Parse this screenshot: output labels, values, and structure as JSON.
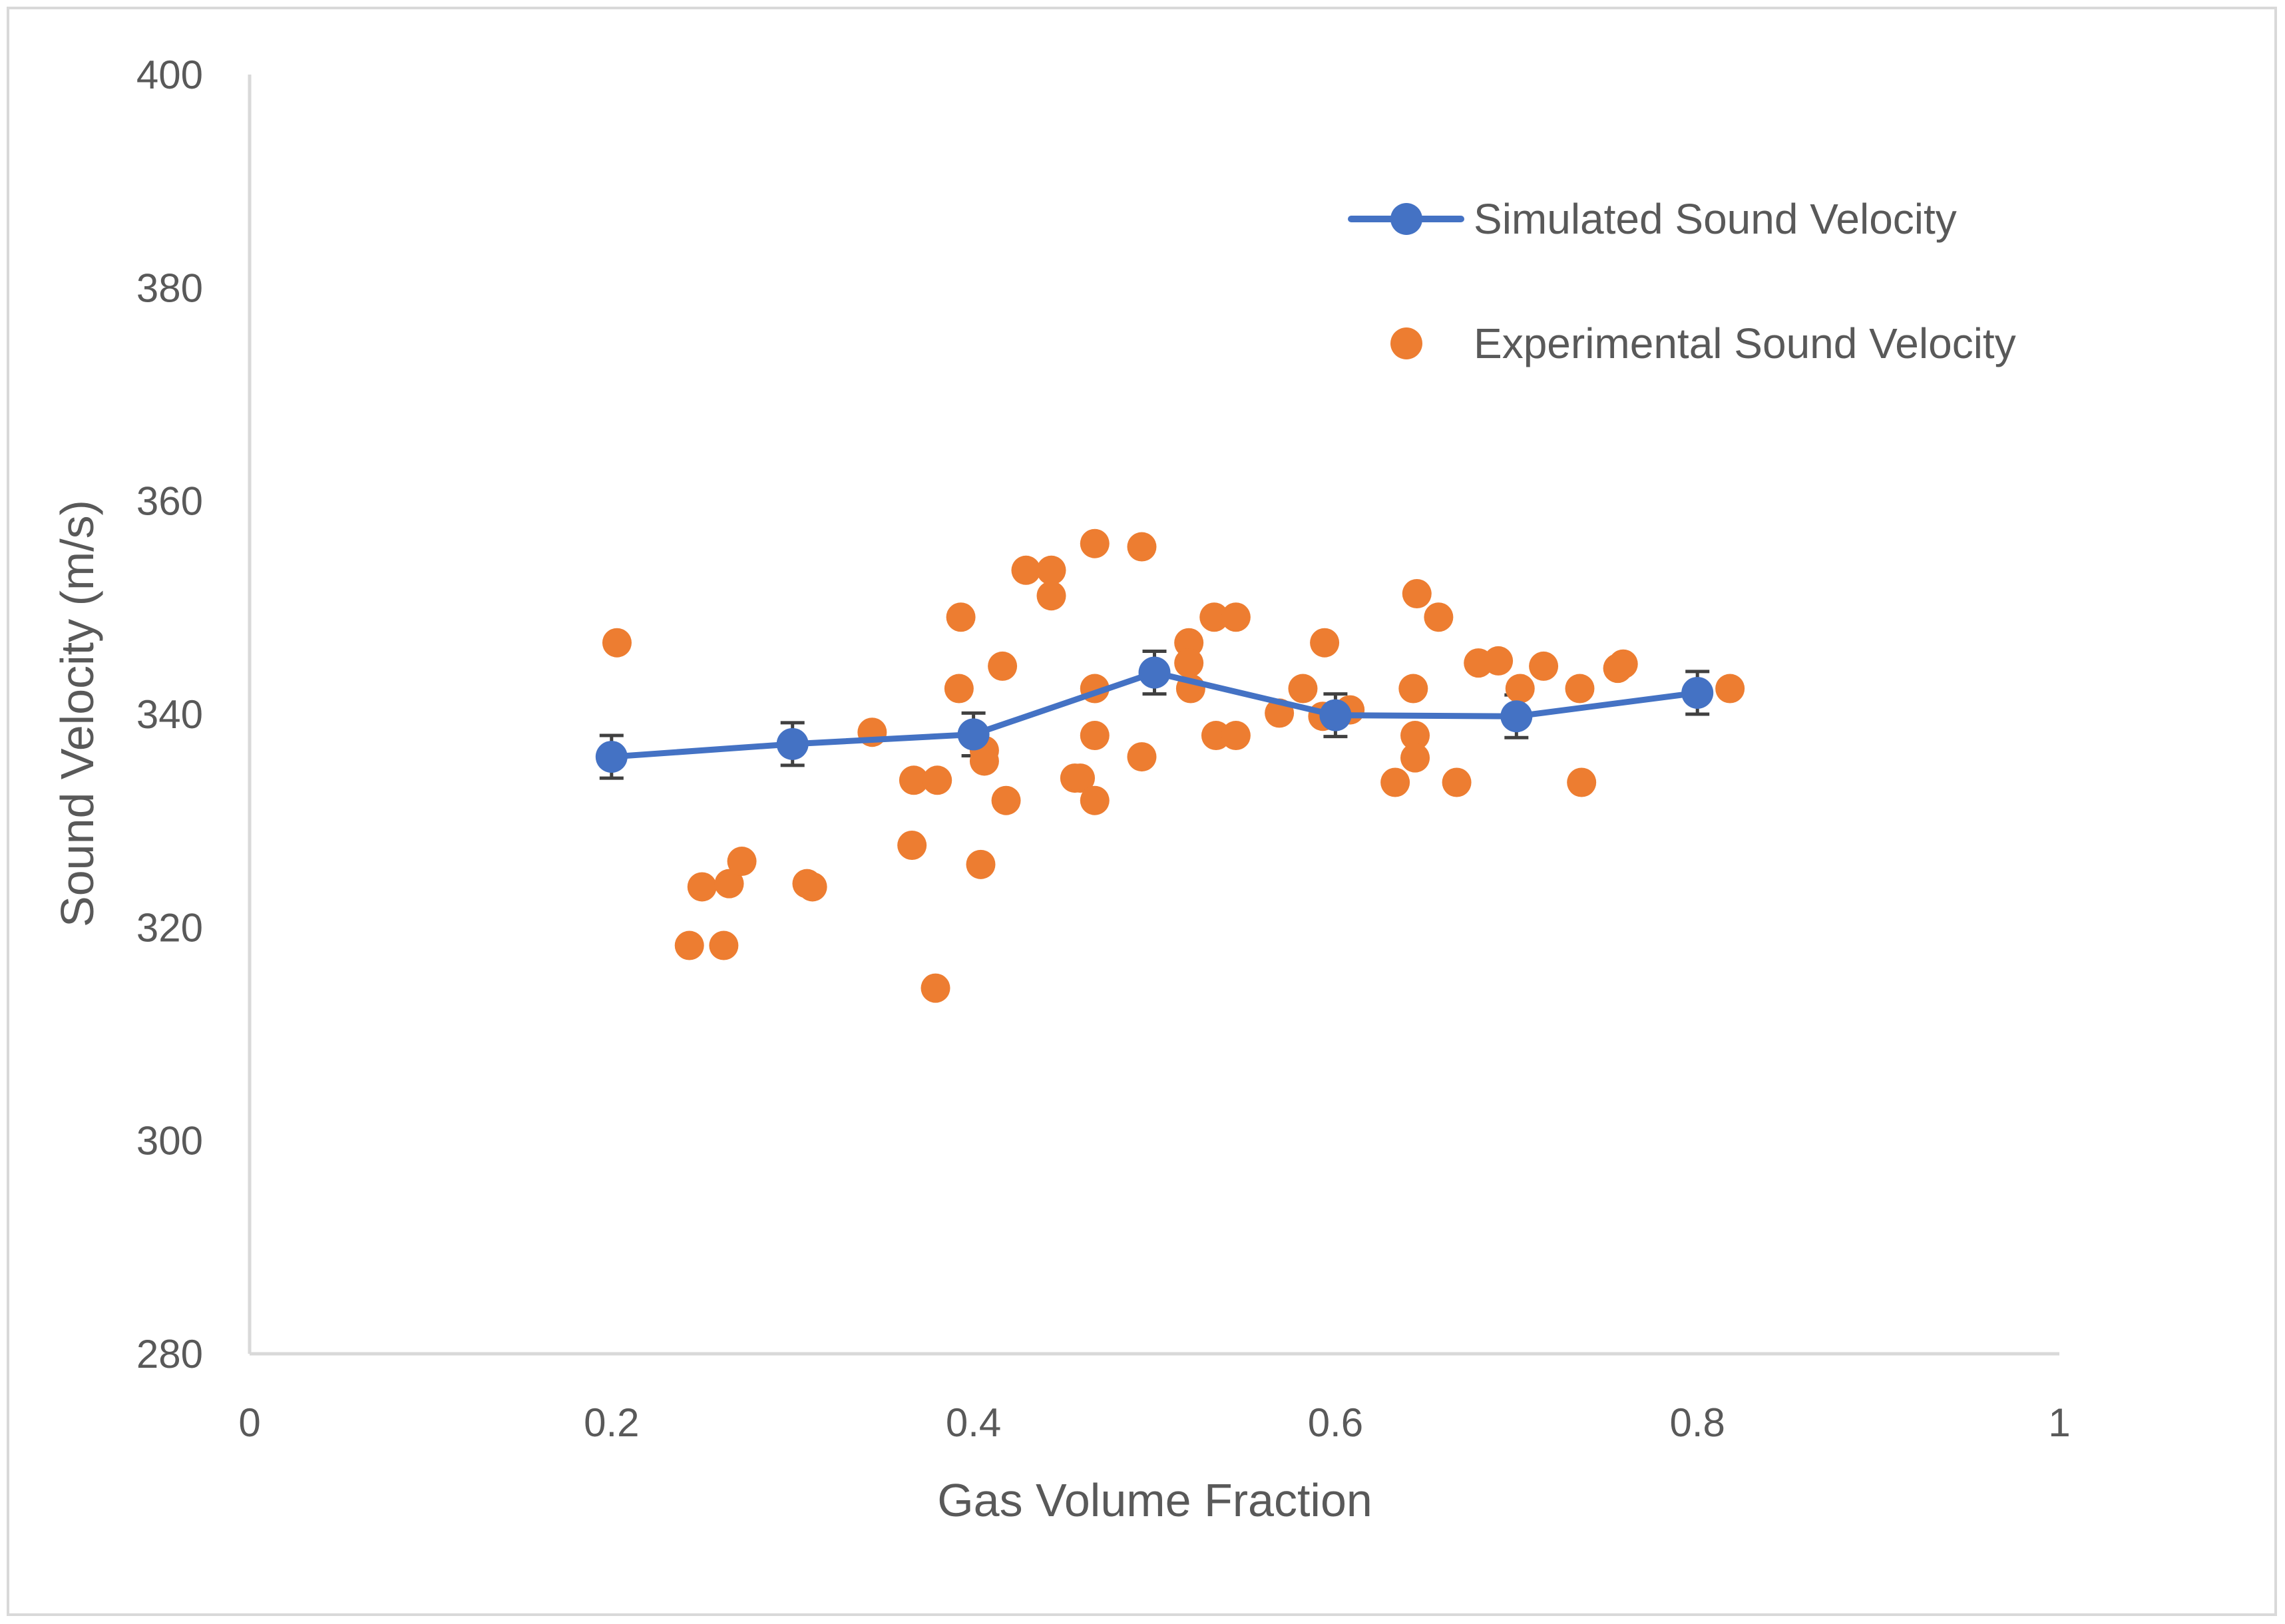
{
  "chart_data": {
    "type": "scatter",
    "title": "",
    "xlabel": "Gas Volume Fraction",
    "ylabel": "Sound Velocity (m/s)",
    "xlim": [
      0,
      1
    ],
    "ylim": [
      280,
      400
    ],
    "x_ticks": [
      0,
      0.2,
      0.4,
      0.6,
      0.8,
      1
    ],
    "x_tick_labels": [
      "0",
      "0.2",
      "0.4",
      "0.6",
      "0.8",
      "1"
    ],
    "y_ticks": [
      280,
      300,
      320,
      340,
      360,
      380,
      400
    ],
    "y_tick_labels": [
      "280",
      "300",
      "320",
      "340",
      "360",
      "380",
      "400"
    ],
    "grid": false,
    "legend_position": "top-right",
    "series": [
      {
        "name": "Simulated Sound Velocity",
        "type": "line",
        "color": "#4472C4",
        "x": [
          0.2,
          0.3,
          0.4,
          0.5,
          0.6,
          0.7,
          0.8
        ],
        "y": [
          336,
          337.2,
          338.1,
          343.9,
          339.9,
          339.8,
          342
        ],
        "error": [
          2,
          2,
          2,
          2,
          2,
          2,
          2
        ]
      },
      {
        "name": "Experimental Sound Velocity",
        "type": "scatter",
        "color": "#ED7D31",
        "points": [
          [
            0.203,
            346.7
          ],
          [
            0.243,
            318.3
          ],
          [
            0.25,
            323.8
          ],
          [
            0.262,
            318.3
          ],
          [
            0.265,
            324.1
          ],
          [
            0.272,
            326.2
          ],
          [
            0.308,
            324.1
          ],
          [
            0.311,
            323.8
          ],
          [
            0.344,
            338.3
          ],
          [
            0.366,
            327.7
          ],
          [
            0.367,
            333.8
          ],
          [
            0.379,
            314.3
          ],
          [
            0.38,
            333.8
          ],
          [
            0.392,
            342.4
          ],
          [
            0.393,
            349.1
          ],
          [
            0.404,
            325.9
          ],
          [
            0.406,
            336.6
          ],
          [
            0.406,
            335.6
          ],
          [
            0.416,
            344.5
          ],
          [
            0.418,
            331.9
          ],
          [
            0.429,
            353.5
          ],
          [
            0.443,
            353.5
          ],
          [
            0.443,
            351.1
          ],
          [
            0.456,
            334
          ],
          [
            0.459,
            334
          ],
          [
            0.467,
            356
          ],
          [
            0.467,
            342.4
          ],
          [
            0.467,
            338
          ],
          [
            0.467,
            331.9
          ],
          [
            0.493,
            355.7
          ],
          [
            0.493,
            336
          ],
          [
            0.519,
            346.7
          ],
          [
            0.519,
            344.8
          ],
          [
            0.52,
            342.4
          ],
          [
            0.533,
            349.1
          ],
          [
            0.534,
            338
          ],
          [
            0.545,
            349.1
          ],
          [
            0.545,
            338
          ],
          [
            0.569,
            340.1
          ],
          [
            0.582,
            342.4
          ],
          [
            0.593,
            339.8
          ],
          [
            0.594,
            346.7
          ],
          [
            0.608,
            340.4
          ],
          [
            0.633,
            333.6
          ],
          [
            0.643,
            342.4
          ],
          [
            0.644,
            338
          ],
          [
            0.644,
            335.9
          ],
          [
            0.645,
            351.3
          ],
          [
            0.657,
            349.1
          ],
          [
            0.667,
            333.6
          ],
          [
            0.679,
            344.8
          ],
          [
            0.69,
            345
          ],
          [
            0.702,
            342.4
          ],
          [
            0.715,
            344.5
          ],
          [
            0.735,
            342.4
          ],
          [
            0.736,
            333.6
          ],
          [
            0.756,
            344.3
          ],
          [
            0.759,
            344.7
          ],
          [
            0.818,
            342.4
          ]
        ]
      }
    ]
  }
}
